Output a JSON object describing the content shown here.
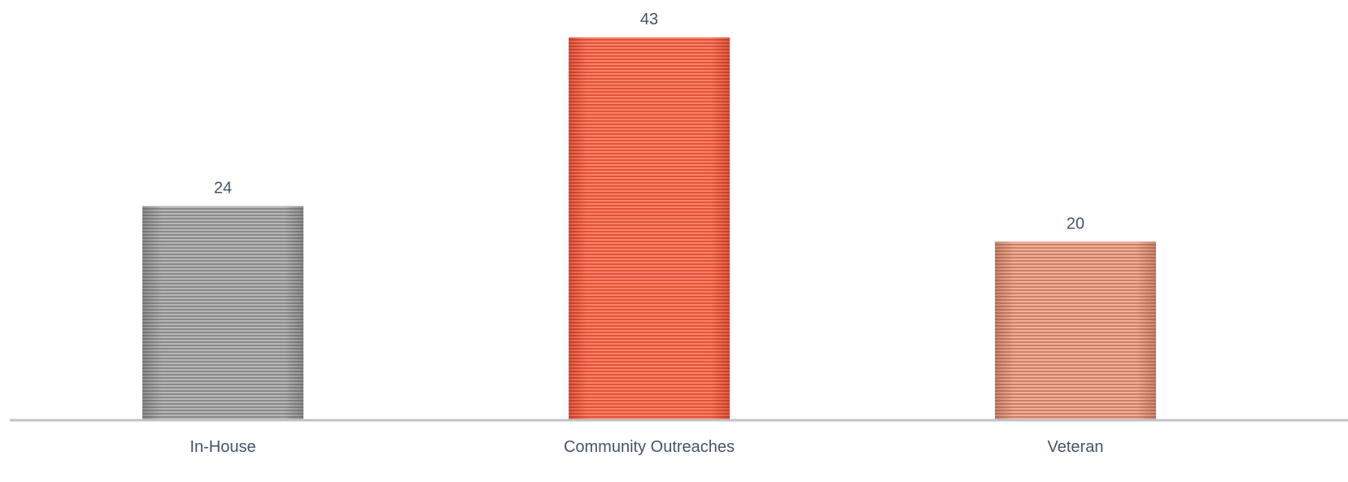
{
  "chart_data": {
    "type": "bar",
    "categories": [
      "In-House",
      "Community Outreaches",
      "Veteran"
    ],
    "values": [
      24,
      43,
      20
    ],
    "title": "",
    "xlabel": "",
    "ylabel": "",
    "ylim": [
      0,
      43
    ],
    "grid": false,
    "legend": "none",
    "data_labels": true,
    "colors": [
      "#8a8a8a",
      "#e0553a",
      "#c8826a"
    ],
    "axis_color": "#bfc4ca",
    "label_color": "#44546a"
  }
}
